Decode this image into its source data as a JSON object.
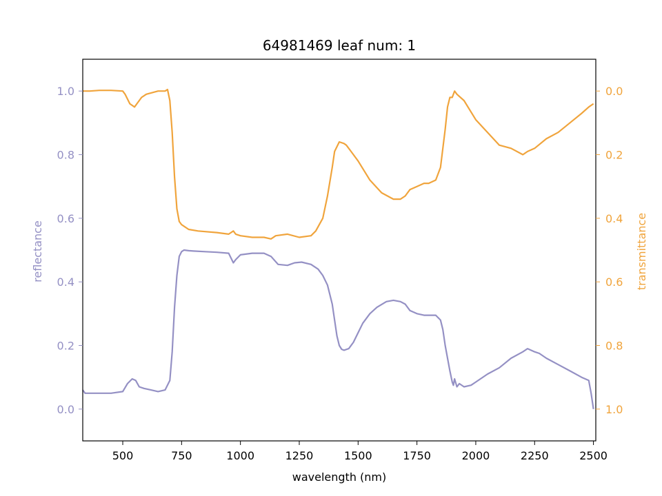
{
  "chart_data": {
    "type": "line",
    "title": "64981469 leaf num: 1",
    "xlabel": "wavelength (nm)",
    "ylabel_left": "reflectance",
    "ylabel_right": "transmittance",
    "xlim": [
      330,
      2510
    ],
    "ylim_left": [
      -0.1,
      1.1
    ],
    "ylim_right_inverted": [
      1.1,
      -0.1
    ],
    "x_ticks": [
      500,
      750,
      1000,
      1250,
      1500,
      1750,
      2000,
      2250,
      2500
    ],
    "y_ticks_left": [
      "0.0",
      "0.2",
      "0.4",
      "0.6",
      "0.8",
      "1.0"
    ],
    "y_ticks_right": [
      "0.0",
      "0.2",
      "0.4",
      "0.6",
      "0.8",
      "1.0"
    ],
    "colors": {
      "reflectance": "#9490c4",
      "transmittance": "#f0a43c",
      "axis": "#000000"
    },
    "grid": false,
    "series": [
      {
        "name": "reflectance",
        "axis": "left",
        "x": [
          330,
          340,
          350,
          400,
          450,
          500,
          520,
          540,
          555,
          570,
          590,
          620,
          650,
          680,
          700,
          710,
          720,
          730,
          740,
          750,
          760,
          780,
          800,
          850,
          900,
          950,
          970,
          980,
          1000,
          1050,
          1100,
          1130,
          1160,
          1200,
          1230,
          1260,
          1300,
          1330,
          1350,
          1370,
          1390,
          1400,
          1410,
          1420,
          1430,
          1440,
          1460,
          1480,
          1500,
          1520,
          1550,
          1580,
          1620,
          1650,
          1680,
          1700,
          1720,
          1750,
          1780,
          1800,
          1830,
          1850,
          1860,
          1870,
          1880,
          1890,
          1900,
          1905,
          1910,
          1920,
          1930,
          1950,
          1980,
          2000,
          2050,
          2100,
          2150,
          2200,
          2220,
          2250,
          2270,
          2300,
          2350,
          2400,
          2450,
          2480,
          2490,
          2500
        ],
        "y": [
          0.06,
          0.05,
          0.05,
          0.05,
          0.05,
          0.055,
          0.08,
          0.095,
          0.09,
          0.07,
          0.065,
          0.06,
          0.055,
          0.06,
          0.09,
          0.18,
          0.32,
          0.42,
          0.48,
          0.495,
          0.5,
          0.498,
          0.497,
          0.495,
          0.493,
          0.49,
          0.46,
          0.47,
          0.485,
          0.49,
          0.49,
          0.48,
          0.455,
          0.452,
          0.46,
          0.462,
          0.455,
          0.44,
          0.42,
          0.39,
          0.33,
          0.28,
          0.23,
          0.2,
          0.188,
          0.185,
          0.19,
          0.21,
          0.24,
          0.27,
          0.3,
          0.32,
          0.338,
          0.342,
          0.338,
          0.33,
          0.31,
          0.3,
          0.295,
          0.295,
          0.295,
          0.28,
          0.25,
          0.2,
          0.16,
          0.12,
          0.085,
          0.075,
          0.095,
          0.07,
          0.08,
          0.07,
          0.075,
          0.085,
          0.11,
          0.13,
          0.16,
          0.18,
          0.19,
          0.18,
          0.175,
          0.16,
          0.14,
          0.12,
          0.1,
          0.09,
          0.05,
          0.0
        ]
      },
      {
        "name": "transmittance",
        "axis": "right",
        "x": [
          330,
          340,
          360,
          400,
          450,
          500,
          510,
          530,
          550,
          560,
          580,
          600,
          650,
          680,
          690,
          700,
          710,
          720,
          730,
          740,
          750,
          760,
          780,
          820,
          900,
          950,
          970,
          980,
          1000,
          1050,
          1100,
          1130,
          1150,
          1200,
          1250,
          1300,
          1320,
          1350,
          1370,
          1390,
          1400,
          1420,
          1440,
          1450,
          1470,
          1500,
          1550,
          1600,
          1650,
          1680,
          1700,
          1720,
          1750,
          1780,
          1800,
          1830,
          1850,
          1870,
          1880,
          1890,
          1900,
          1910,
          1920,
          1950,
          2000,
          2050,
          2100,
          2150,
          2200,
          2220,
          2250,
          2300,
          2350,
          2400,
          2450,
          2480,
          2500
        ],
        "y": [
          0.0,
          0.0,
          0.0,
          -0.002,
          -0.002,
          0.0,
          0.01,
          0.04,
          0.05,
          0.04,
          0.02,
          0.01,
          0.0,
          0.0,
          -0.005,
          0.03,
          0.13,
          0.27,
          0.37,
          0.41,
          0.42,
          0.425,
          0.435,
          0.44,
          0.445,
          0.45,
          0.44,
          0.45,
          0.455,
          0.46,
          0.46,
          0.465,
          0.455,
          0.45,
          0.46,
          0.455,
          0.44,
          0.4,
          0.33,
          0.24,
          0.19,
          0.16,
          0.165,
          0.17,
          0.19,
          0.22,
          0.28,
          0.32,
          0.34,
          0.34,
          0.33,
          0.31,
          0.3,
          0.29,
          0.29,
          0.28,
          0.24,
          0.12,
          0.05,
          0.02,
          0.02,
          0.0,
          0.01,
          0.03,
          0.09,
          0.13,
          0.17,
          0.18,
          0.2,
          0.19,
          0.18,
          0.15,
          0.13,
          0.1,
          0.07,
          0.05,
          0.04
        ]
      }
    ]
  }
}
